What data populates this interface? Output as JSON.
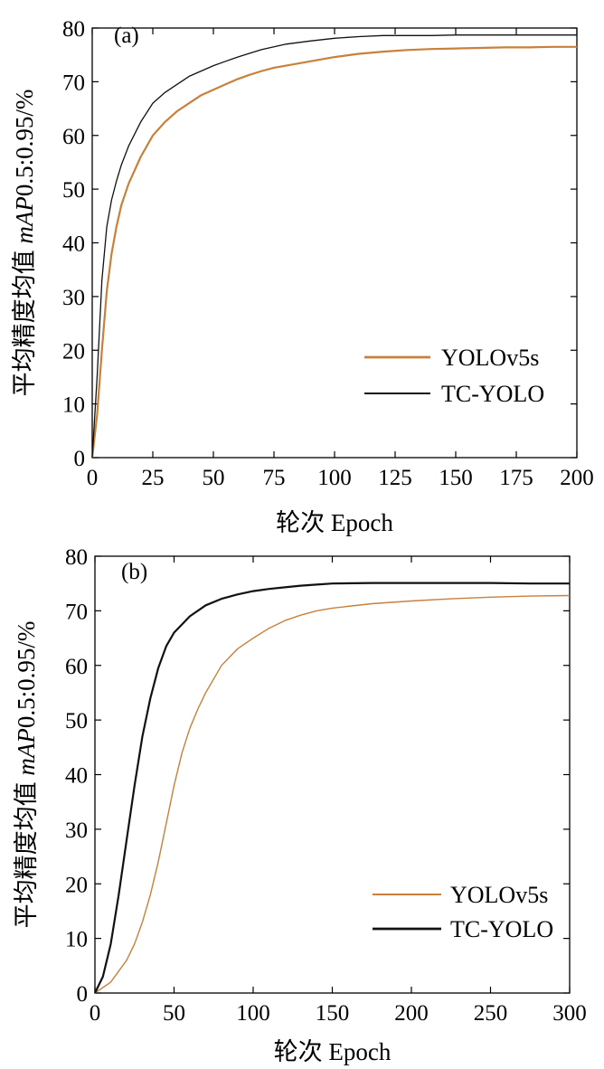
{
  "chart_data": [
    {
      "panel": "(a)",
      "type": "line",
      "xlabel": "轮次 Epoch",
      "ylabel_prefix": "平均精度均值 ",
      "ylabel_italic": "mAP",
      "ylabel_suffix": "0.5:0.95/%",
      "xlim": [
        0,
        200
      ],
      "ylim": [
        0,
        80
      ],
      "xticks": [
        0,
        25,
        50,
        75,
        100,
        125,
        150,
        175,
        200
      ],
      "yticks": [
        0,
        10,
        20,
        30,
        40,
        50,
        60,
        70,
        80
      ],
      "grid": false,
      "legend_position": "lower-right",
      "series": [
        {
          "name": "YOLOv5s",
          "color": "#c8803a",
          "x": [
            0,
            2,
            4,
            6,
            8,
            10,
            12,
            15,
            20,
            25,
            30,
            35,
            40,
            45,
            50,
            55,
            60,
            65,
            70,
            75,
            80,
            90,
            100,
            110,
            120,
            130,
            140,
            150,
            160,
            170,
            180,
            190,
            200
          ],
          "y": [
            0,
            8,
            20,
            31,
            38,
            43,
            47,
            51,
            56,
            60,
            62.5,
            64.5,
            66,
            67.5,
            68.5,
            69.5,
            70.5,
            71.3,
            72,
            72.6,
            73,
            73.8,
            74.6,
            75.2,
            75.6,
            75.9,
            76.1,
            76.2,
            76.3,
            76.4,
            76.4,
            76.5,
            76.5
          ]
        },
        {
          "name": "TC-YOLO",
          "color": "#111111",
          "x": [
            0,
            2,
            4,
            6,
            8,
            10,
            12,
            15,
            20,
            25,
            30,
            35,
            40,
            45,
            50,
            55,
            60,
            65,
            70,
            75,
            80,
            90,
            100,
            110,
            120,
            130,
            140,
            150,
            160,
            170,
            180,
            190,
            200
          ],
          "y": [
            0,
            15,
            33,
            43,
            48,
            51.5,
            54.5,
            58,
            62.5,
            66,
            68,
            69.5,
            71,
            72,
            73,
            73.8,
            74.6,
            75.3,
            76,
            76.5,
            77,
            77.6,
            78.1,
            78.4,
            78.6,
            78.6,
            78.6,
            78.7,
            78.7,
            78.7,
            78.7,
            78.7,
            78.7
          ]
        }
      ]
    },
    {
      "panel": "(b)",
      "type": "line",
      "xlabel": "轮次 Epoch",
      "ylabel_prefix": "平均精度均值 ",
      "ylabel_italic": "mAP",
      "ylabel_suffix": "0.5:0.95/%",
      "xlim": [
        0,
        300
      ],
      "ylim": [
        0,
        80
      ],
      "xticks": [
        0,
        50,
        100,
        150,
        200,
        250,
        300
      ],
      "yticks": [
        0,
        10,
        20,
        30,
        40,
        50,
        60,
        70,
        80
      ],
      "grid": false,
      "legend_position": "lower-right",
      "series": [
        {
          "name": "YOLOv5s",
          "color": "#c8803a",
          "x": [
            0,
            10,
            20,
            25,
            30,
            35,
            40,
            45,
            50,
            55,
            60,
            65,
            70,
            75,
            80,
            90,
            100,
            110,
            120,
            130,
            140,
            150,
            175,
            200,
            225,
            250,
            275,
            300
          ],
          "y": [
            0,
            2,
            6,
            9,
            13,
            18,
            24,
            31,
            38,
            44,
            48.5,
            52,
            55,
            57.5,
            60,
            63,
            65,
            66.8,
            68.2,
            69.2,
            70,
            70.5,
            71.3,
            71.8,
            72.2,
            72.5,
            72.7,
            72.8
          ]
        },
        {
          "name": "TC-YOLO",
          "color": "#111111",
          "x": [
            0,
            5,
            10,
            15,
            20,
            25,
            30,
            35,
            40,
            45,
            50,
            60,
            70,
            80,
            90,
            100,
            110,
            120,
            130,
            140,
            150,
            175,
            200,
            225,
            250,
            275,
            300
          ],
          "y": [
            0,
            3,
            9,
            18,
            28,
            38,
            47,
            54,
            59.5,
            63.5,
            66,
            69,
            71,
            72.2,
            73,
            73.6,
            74,
            74.3,
            74.6,
            74.8,
            75,
            75.1,
            75.1,
            75.1,
            75.1,
            75,
            75
          ]
        }
      ]
    }
  ]
}
